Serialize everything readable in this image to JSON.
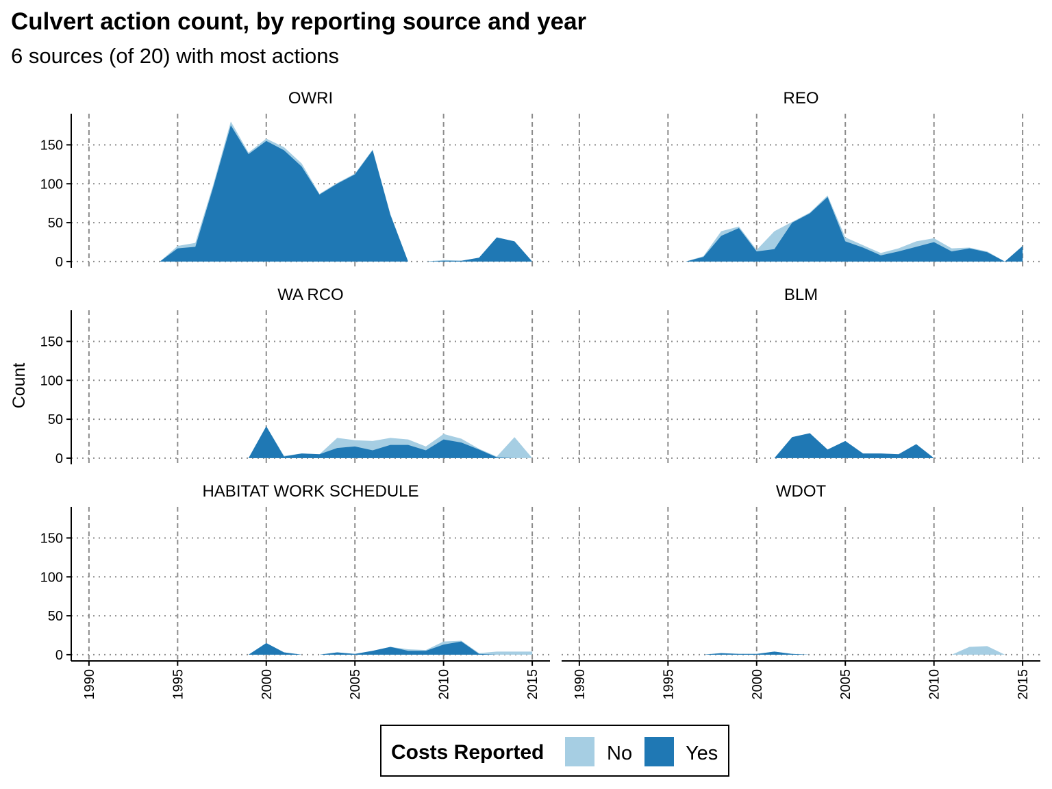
{
  "title": "Culvert action count, by reporting source and year",
  "subtitle": "6 sources (of 20) with most actions",
  "colors": {
    "no": "#a6cee3",
    "yes": "#1f78b4",
    "grid": "#8c8c8c"
  },
  "legend": {
    "title": "Costs Reported",
    "no_label": "No",
    "yes_label": "Yes"
  },
  "chart_data": {
    "type": "area",
    "stacked": true,
    "ylabel": "Count",
    "xlabel": "",
    "xlim": [
      1989,
      2016
    ],
    "ylim": [
      -8,
      190
    ],
    "x_ticks": [
      1990,
      1995,
      2000,
      2005,
      2010,
      2015
    ],
    "x_tick_labels": [
      "1990",
      "1995",
      "2000",
      "2005",
      "2010",
      "2015"
    ],
    "y_ticks": [
      0,
      50,
      100,
      150
    ],
    "y_tick_labels": [
      "0",
      "50",
      "100",
      "150"
    ],
    "grid": {
      "major_x": "dashed",
      "major_y": "dotted"
    },
    "legend_position": "bottom",
    "series_names": [
      "No",
      "Yes"
    ],
    "panels": [
      {
        "name": "OWRI",
        "years": [
          1994,
          1995,
          1996,
          1997,
          1998,
          1999,
          2000,
          2001,
          2002,
          2003,
          2004,
          2005,
          2006,
          2007,
          2008,
          2009,
          2010,
          2011,
          2012,
          2013,
          2014,
          2015
        ],
        "yes": [
          0,
          17,
          19,
          95,
          175,
          138,
          155,
          143,
          122,
          86,
          100,
          112,
          143,
          60,
          0,
          0,
          1,
          1,
          5,
          31,
          26,
          0
        ],
        "no": [
          0,
          3,
          5,
          3,
          5,
          2,
          3,
          4,
          4,
          1,
          1,
          1,
          1,
          1,
          0,
          0,
          1,
          0,
          0,
          0,
          0,
          0
        ]
      },
      {
        "name": "REO",
        "years": [
          1996,
          1997,
          1998,
          1999,
          2000,
          2001,
          2002,
          2003,
          2004,
          2005,
          2006,
          2007,
          2008,
          2009,
          2010,
          2011,
          2012,
          2013,
          2014,
          2015
        ],
        "yes": [
          0,
          6,
          33,
          43,
          13,
          16,
          50,
          62,
          83,
          26,
          18,
          8,
          13,
          19,
          25,
          13,
          17,
          12,
          0,
          20
        ],
        "no": [
          0,
          1,
          6,
          2,
          2,
          23,
          1,
          1,
          2,
          5,
          3,
          3,
          4,
          7,
          5,
          4,
          1,
          1,
          0,
          0
        ]
      },
      {
        "name": "WA RCO",
        "years": [
          1999,
          2000,
          2001,
          2002,
          2003,
          2004,
          2005,
          2006,
          2007,
          2008,
          2009,
          2010,
          2011,
          2012,
          2013,
          2014,
          2015
        ],
        "yes": [
          0,
          41,
          2,
          6,
          5,
          13,
          15,
          10,
          17,
          17,
          10,
          24,
          20,
          11,
          1,
          0,
          0
        ],
        "no": [
          0,
          0,
          1,
          0,
          0,
          13,
          8,
          12,
          9,
          7,
          5,
          7,
          5,
          1,
          1,
          27,
          0
        ]
      },
      {
        "name": "BLM",
        "years": [
          2001,
          2002,
          2003,
          2004,
          2005,
          2006,
          2007,
          2008,
          2009,
          2010
        ],
        "yes": [
          0,
          27,
          32,
          11,
          22,
          6,
          6,
          5,
          18,
          0
        ],
        "no": [
          0,
          0,
          0,
          0,
          0,
          0,
          0,
          0,
          0,
          0
        ]
      },
      {
        "name": "HABITAT WORK SCHEDULE",
        "years": [
          1999,
          2000,
          2001,
          2002,
          2003,
          2004,
          2005,
          2006,
          2007,
          2008,
          2009,
          2010,
          2011,
          2012,
          2013,
          2014,
          2015
        ],
        "yes": [
          0,
          15,
          3,
          0,
          0,
          3,
          1,
          5,
          10,
          5,
          5,
          13,
          17,
          1,
          0,
          0,
          0
        ],
        "no": [
          0,
          0,
          0,
          0,
          0,
          0,
          0,
          0,
          0,
          2,
          1,
          4,
          1,
          1,
          4,
          4,
          4
        ]
      },
      {
        "name": "WDOT",
        "years": [
          1997,
          1998,
          1999,
          2000,
          2001,
          2002,
          2003,
          2011,
          2012,
          2013,
          2014
        ],
        "yes": [
          0,
          2,
          1,
          1,
          4,
          1,
          0,
          0,
          0,
          0,
          0
        ],
        "no": [
          0,
          0,
          0,
          0,
          0,
          0,
          0,
          0,
          10,
          11,
          0
        ]
      }
    ]
  }
}
